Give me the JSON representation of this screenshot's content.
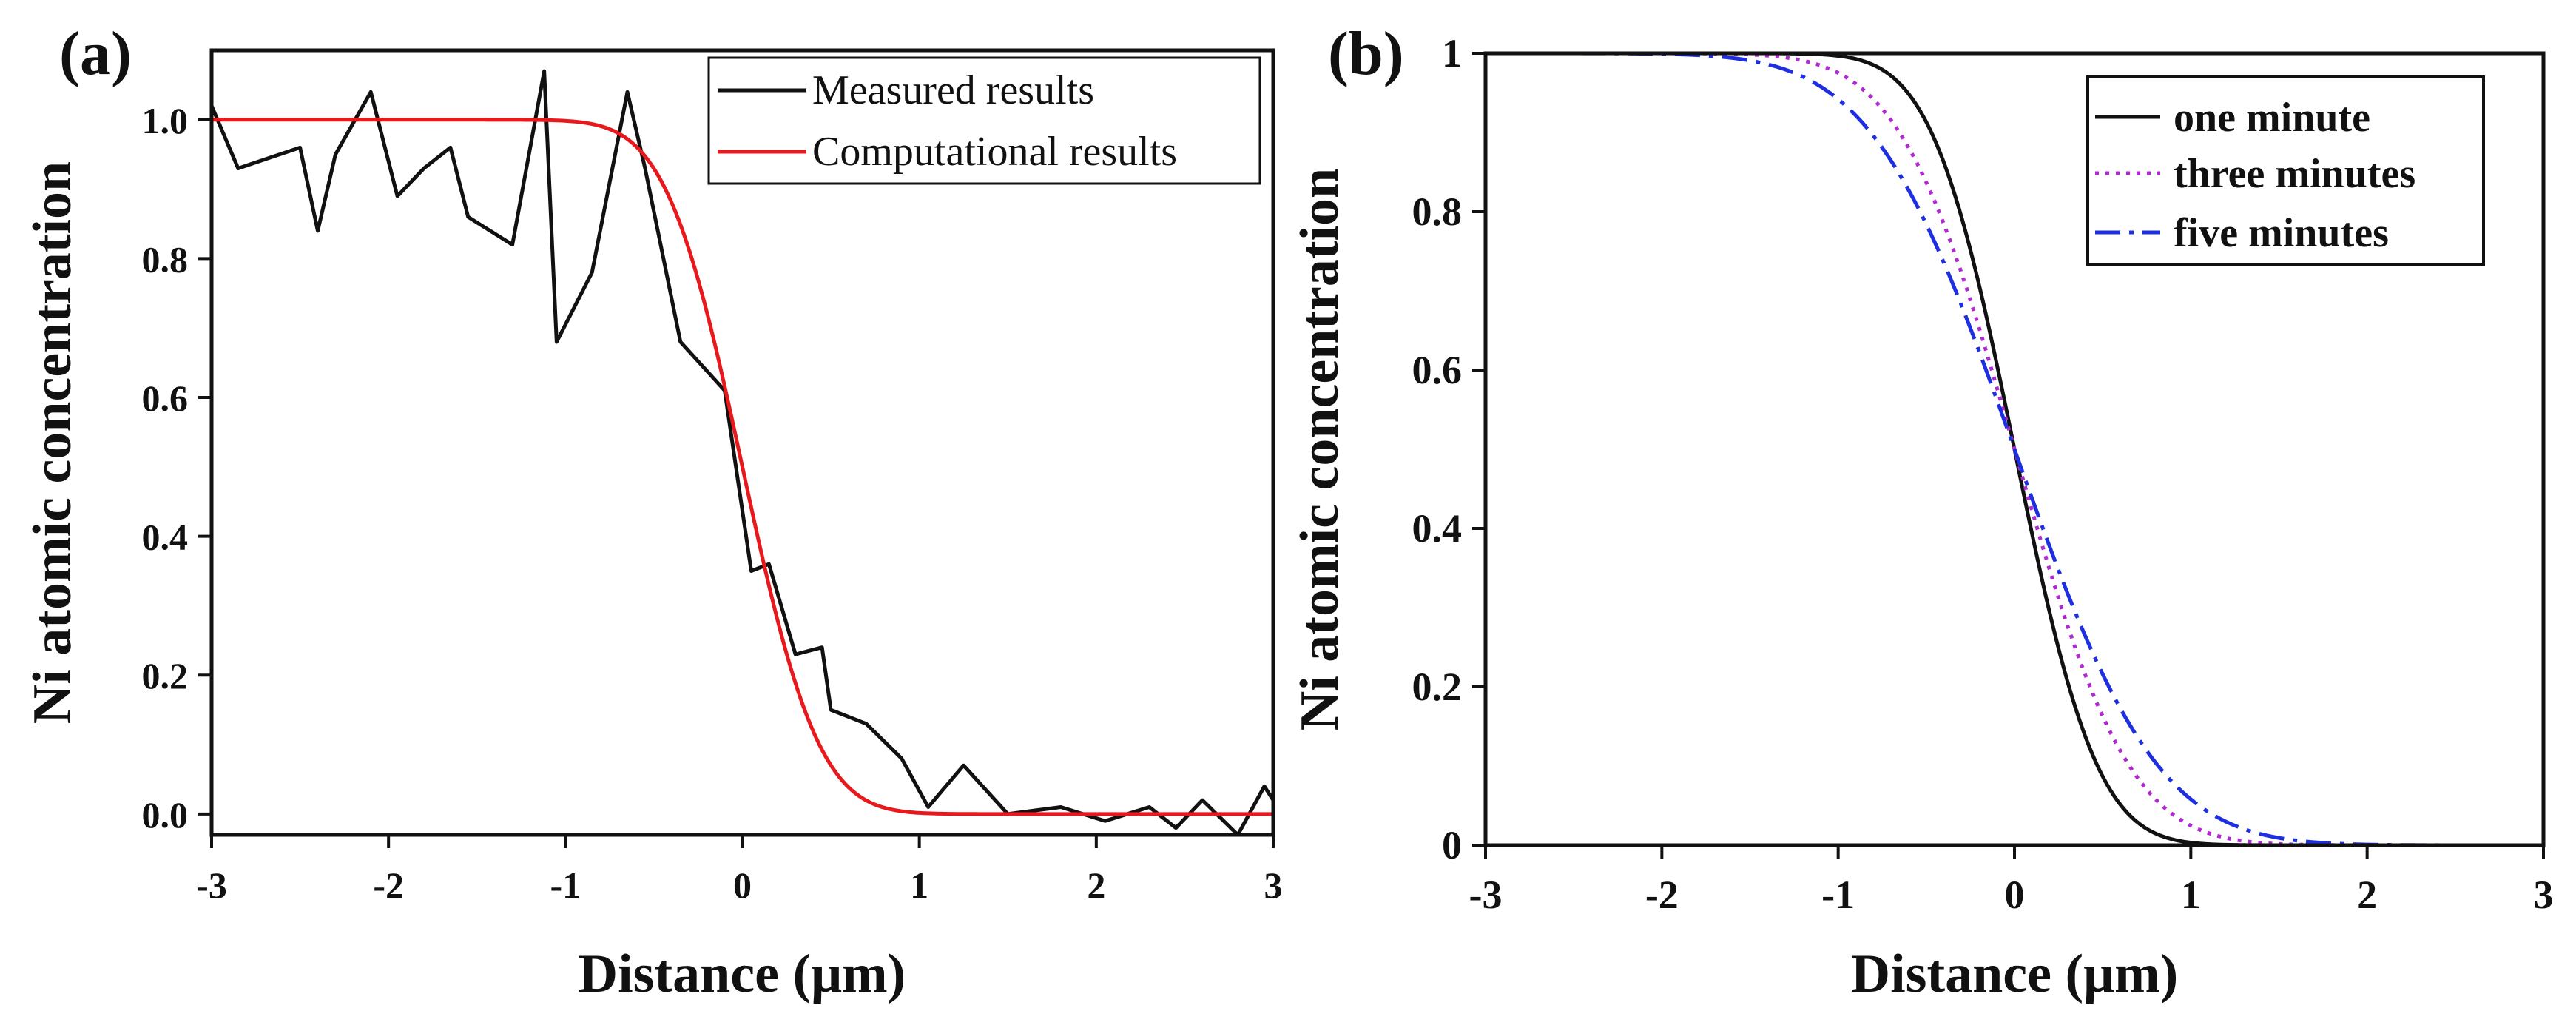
{
  "chart_data": [
    {
      "panel_label": "(a)",
      "type": "line",
      "xlabel": "Distance (μm)",
      "ylabel": "Ni atomic concentration",
      "xlim": [
        -3,
        3
      ],
      "ylim": [
        -0.03,
        1.1
      ],
      "xticks": [
        "-3",
        "-2",
        "-1",
        "0",
        "1",
        "2",
        "3"
      ],
      "yticks": [
        "0.0",
        "0.2",
        "0.4",
        "0.6",
        "0.8",
        "1.0"
      ],
      "legend_position": "top-right",
      "series": [
        {
          "name": "Measured results",
          "color": "#111111",
          "style": "solid",
          "x": [
            -3.0,
            -2.85,
            -2.5,
            -2.4,
            -2.3,
            -2.1,
            -1.95,
            -1.8,
            -1.65,
            -1.55,
            -1.3,
            -1.12,
            -1.05,
            -0.85,
            -0.65,
            -0.55,
            -0.35,
            -0.1,
            0.05,
            0.15,
            0.3,
            0.45,
            0.5,
            0.7,
            0.9,
            1.05,
            1.25,
            1.5,
            1.8,
            2.05,
            2.3,
            2.45,
            2.6,
            2.8,
            2.95,
            3.0
          ],
          "y": [
            1.02,
            0.93,
            0.96,
            0.84,
            0.95,
            1.04,
            0.89,
            0.93,
            0.96,
            0.86,
            0.82,
            1.07,
            0.68,
            0.78,
            1.04,
            0.93,
            0.68,
            0.61,
            0.35,
            0.36,
            0.23,
            0.24,
            0.15,
            0.13,
            0.08,
            0.01,
            0.07,
            0.0,
            0.01,
            -0.01,
            0.01,
            -0.02,
            0.02,
            -0.03,
            0.04,
            0.02
          ]
        },
        {
          "name": "Computational results",
          "color": "#e8191c",
          "style": "solid",
          "model": "error_function",
          "center_um": 0.0,
          "width_um": 0.48
        }
      ]
    },
    {
      "panel_label": "(b)",
      "type": "line",
      "xlabel": "Distance (μm)",
      "ylabel": "Ni atomic concentration",
      "xlim": [
        -3,
        3
      ],
      "ylim": [
        0,
        1
      ],
      "xticks": [
        "-3",
        "-2",
        "-1",
        "0",
        "1",
        "2",
        "3"
      ],
      "yticks": [
        "0",
        "0.2",
        "0.4",
        "0.6",
        "0.8",
        "1"
      ],
      "legend_position": "top-right",
      "series": [
        {
          "name": "one minute",
          "color": "#111111",
          "style": "solid",
          "model": "error_function",
          "center_um": 0.0,
          "width_um": 0.52
        },
        {
          "name": "three minutes",
          "color": "#b12ad1",
          "style": "dotted",
          "model": "error_function",
          "center_um": 0.0,
          "width_um": 0.72
        },
        {
          "name": "five minutes",
          "color": "#1d2fe0",
          "style": "dashdot",
          "model": "error_function",
          "center_um": 0.0,
          "width_um": 0.9
        }
      ]
    }
  ]
}
